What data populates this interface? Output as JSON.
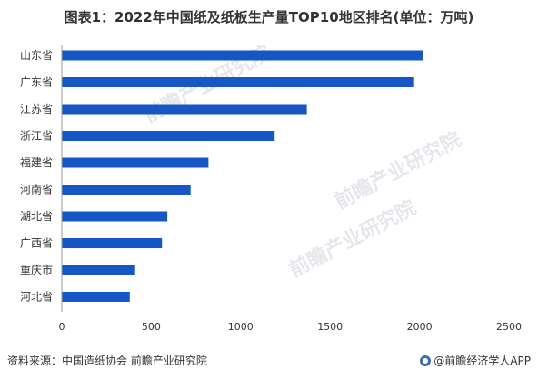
{
  "title": "图表1：2022年中国纸及纸板生产量TOP10地区排名(单位：万吨)",
  "source": "资料来源：中国造纸协会 前瞻产业研究院",
  "brand": "@前瞻经济学人APP",
  "watermark": "前瞻产业研究院",
  "colors": {
    "bar": "#1756c5",
    "axis": "#999999",
    "text": "#333333"
  },
  "chart_data": {
    "type": "bar",
    "orientation": "horizontal",
    "categories": [
      "山东省",
      "广东省",
      "江苏省",
      "浙江省",
      "福建省",
      "河南省",
      "湖北省",
      "广西省",
      "重庆市",
      "河北省"
    ],
    "values": [
      2020,
      1970,
      1370,
      1190,
      820,
      720,
      590,
      560,
      410,
      380
    ],
    "xticks": [
      "0",
      "500",
      "1000",
      "1500",
      "2000",
      "2500"
    ],
    "xlim": [
      0,
      2500
    ],
    "grid": false
  }
}
